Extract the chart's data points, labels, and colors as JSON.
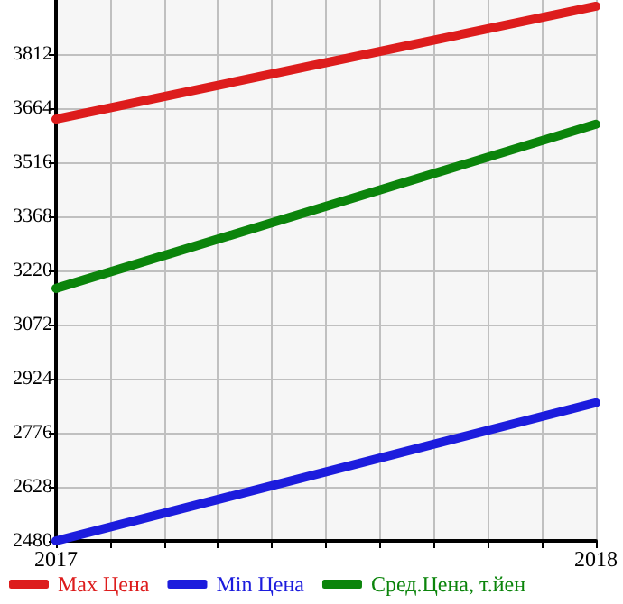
{
  "chart_data": {
    "type": "line",
    "x": [
      2017,
      2018
    ],
    "series": [
      {
        "name": "Max Цена",
        "color": "#dd1c1c",
        "values": [
          3634,
          3943
        ]
      },
      {
        "name": "Min Цена",
        "color": "#1c1cdd",
        "values": [
          2480,
          2858
        ]
      },
      {
        "name": "Сред.Цена, т.йен",
        "color": "#0b840b",
        "values": [
          3171,
          3620
        ]
      }
    ],
    "xlim": [
      2017,
      2018
    ],
    "xticks": [
      2017,
      {
        "value": 2017.1,
        "label": null
      },
      {
        "value": 2017.2,
        "label": null
      },
      {
        "value": 2017.3,
        "label": null
      },
      {
        "value": 2017.4,
        "label": null
      },
      {
        "value": 2017.5,
        "label": null
      },
      {
        "value": 2017.6,
        "label": null
      },
      {
        "value": 2017.7,
        "label": null
      },
      {
        "value": 2017.8,
        "label": null
      },
      {
        "value": 2017.9,
        "label": null
      },
      2018
    ],
    "ylim": [
      2480,
      3960
    ],
    "yticks": [
      2480,
      2628,
      2776,
      2924,
      3072,
      3220,
      3368,
      3516,
      3664,
      3812
    ],
    "grid": true,
    "legend": "bottom",
    "marker": "none",
    "line_style": "solid"
  }
}
